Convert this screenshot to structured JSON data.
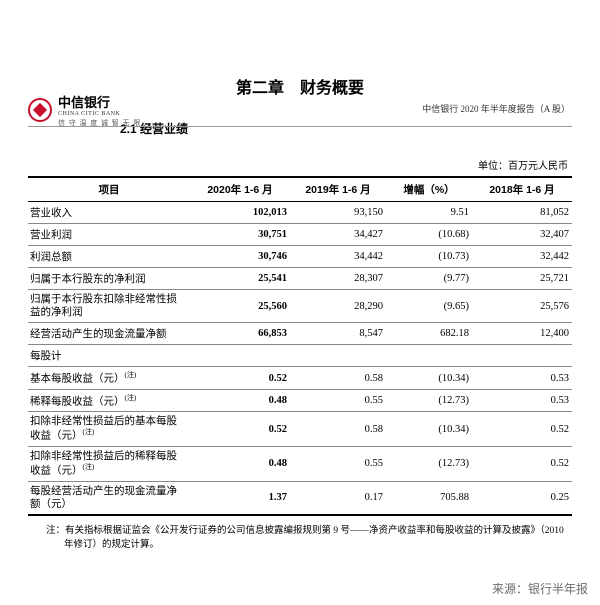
{
  "logo": {
    "cn": "中信银行",
    "en": "CHINA CITIC BANK",
    "sub": "信 守 温 度   诚 智 无 限"
  },
  "header_right": "中信银行 2020 年半年度报告（A 股）",
  "chapter": "第二章　财务概要",
  "section": "2.1  经营业绩",
  "unit": "单位：百万元人民币",
  "columns": {
    "c1": "项目",
    "c2": "2020年 1-6 月",
    "c3": "2019年 1-6 月",
    "c4": "增幅（%）",
    "c5": "2018年 1-6 月"
  },
  "rows": [
    {
      "label": "营业收入",
      "c2": "102,013",
      "c3": "93,150",
      "c4": "9.51",
      "c5": "81,052"
    },
    {
      "label": "营业利润",
      "c2": "30,751",
      "c3": "34,427",
      "c4": "(10.68)",
      "c5": "32,407"
    },
    {
      "label": "利润总额",
      "c2": "30,746",
      "c3": "34,442",
      "c4": "(10.73)",
      "c5": "32,442"
    },
    {
      "label": "归属于本行股东的净利润",
      "c2": "25,541",
      "c3": "28,307",
      "c4": "(9.77)",
      "c5": "25,721"
    },
    {
      "label": "归属于本行股东扣除非经常性损益的净利润",
      "c2": "25,560",
      "c3": "28,290",
      "c4": "(9.65)",
      "c5": "25,576",
      "multi": true
    },
    {
      "label": "经营活动产生的现金流量净额",
      "c2": "66,853",
      "c3": "8,547",
      "c4": "682.18",
      "c5": "12,400"
    },
    {
      "label": "每股计",
      "sub": true
    },
    {
      "label": "基本每股收益（元）",
      "note": "(注)",
      "c2": "0.52",
      "c3": "0.58",
      "c4": "(10.34)",
      "c5": "0.53"
    },
    {
      "label": "稀释每股收益（元）",
      "note": "(注)",
      "c2": "0.48",
      "c3": "0.55",
      "c4": "(12.73)",
      "c5": "0.53"
    },
    {
      "label": "扣除非经常性损益后的基本每股收益（元）",
      "note": "(注)",
      "c2": "0.52",
      "c3": "0.58",
      "c4": "(10.34)",
      "c5": "0.52",
      "multi": true
    },
    {
      "label": "扣除非经常性损益后的稀释每股收益（元）",
      "note": "(注)",
      "c2": "0.48",
      "c3": "0.55",
      "c4": "(12.73)",
      "c5": "0.52",
      "multi": true
    },
    {
      "label": "每股经营活动产生的现金流量净额（元）",
      "c2": "1.37",
      "c3": "0.17",
      "c4": "705.88",
      "c5": "0.25",
      "multi": true,
      "last": true
    }
  ],
  "footnote": "注：有关指标根据证监会《公开发行证券的公司信息披露编报规则第 9 号——净资产收益率和每股收益的计算及披露》（2010 年修订）的规定计算。",
  "source": "来源：银行半年报"
}
